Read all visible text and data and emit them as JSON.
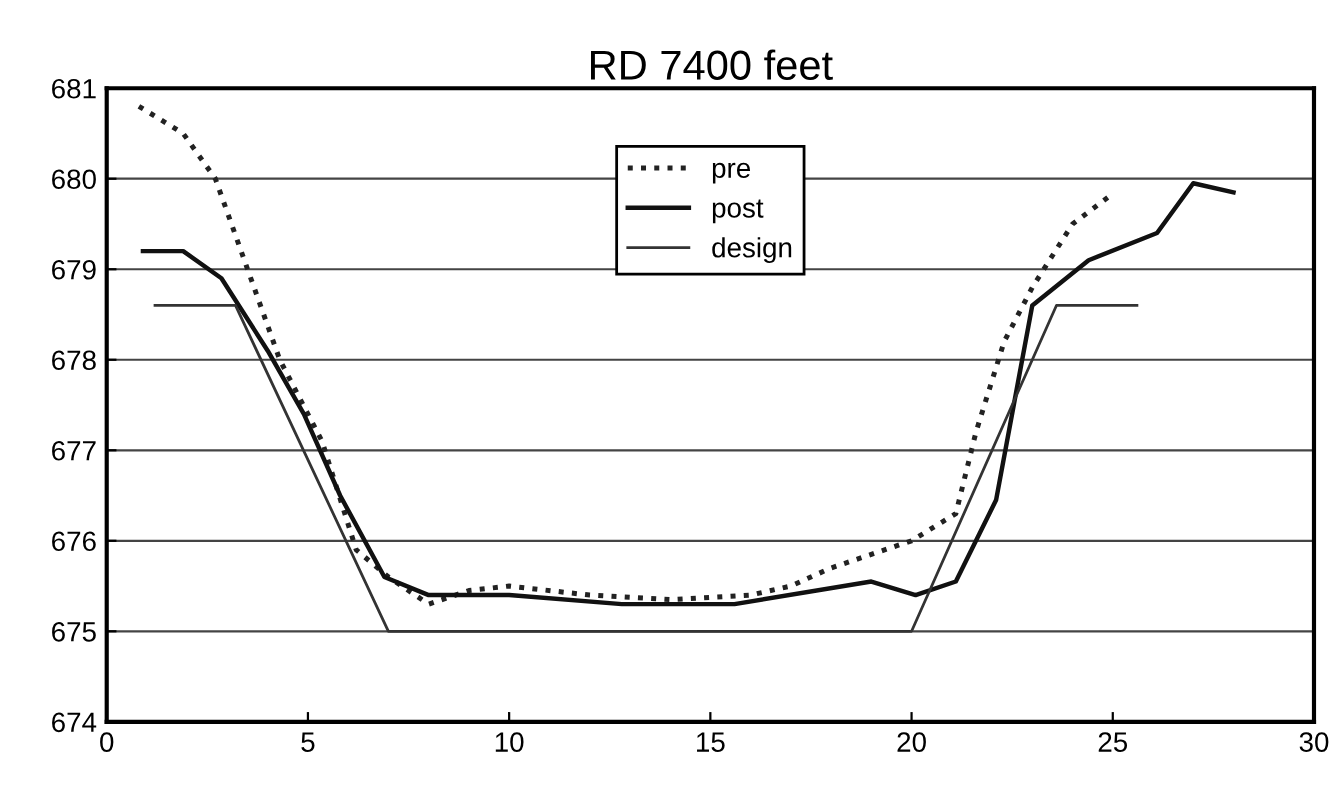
{
  "chart_data": {
    "type": "line",
    "title": "RD 7400 feet",
    "xlim": [
      0,
      30
    ],
    "xticks": [
      0,
      5,
      10,
      15,
      20,
      25,
      30
    ],
    "ylim": [
      674,
      681
    ],
    "yticks": [
      674,
      675,
      676,
      677,
      678,
      679,
      680,
      681
    ],
    "grid": "y",
    "legend": "top",
    "series": [
      {
        "name": "pre",
        "color": "#222222",
        "line_style": "dotted",
        "x": [
          0.8,
          1.9,
          2.7,
          3.5,
          4.3,
          5.35,
          6.2,
          7,
          8,
          9,
          10,
          12,
          14,
          16,
          17,
          18,
          19,
          20,
          21.1,
          21.6,
          22.3,
          23,
          24,
          24.9
        ],
        "values": [
          680.8,
          680.5,
          680,
          679,
          678,
          677.1,
          675.9,
          675.6,
          675.3,
          675.45,
          675.5,
          675.4,
          675.35,
          675.4,
          675.5,
          675.7,
          675.85,
          676,
          676.3,
          677.2,
          678.2,
          678.8,
          679.5,
          679.8
        ]
      },
      {
        "name": "post",
        "color": "#111111",
        "line_style": "solid",
        "x": [
          0.9,
          1.9,
          2.85,
          4,
          4.9,
          5.8,
          6.9,
          8,
          10,
          12.8,
          15.6,
          19,
          20.1,
          21.1,
          22.1,
          23,
          24.4,
          26.1,
          27,
          28
        ],
        "values": [
          679.2,
          679.2,
          678.9,
          678.1,
          677.4,
          676.5,
          675.6,
          675.4,
          675.4,
          675.3,
          675.3,
          675.55,
          675.4,
          675.55,
          676.45,
          678.6,
          679.1,
          679.4,
          679.95,
          679.85
        ]
      },
      {
        "name": "design",
        "color": "#333333",
        "line_style": "solid",
        "x": [
          1.2,
          3.2,
          7,
          20,
          23.6,
          25.6
        ],
        "values": [
          678.6,
          678.6,
          675,
          675,
          678.6,
          678.6
        ]
      }
    ]
  }
}
